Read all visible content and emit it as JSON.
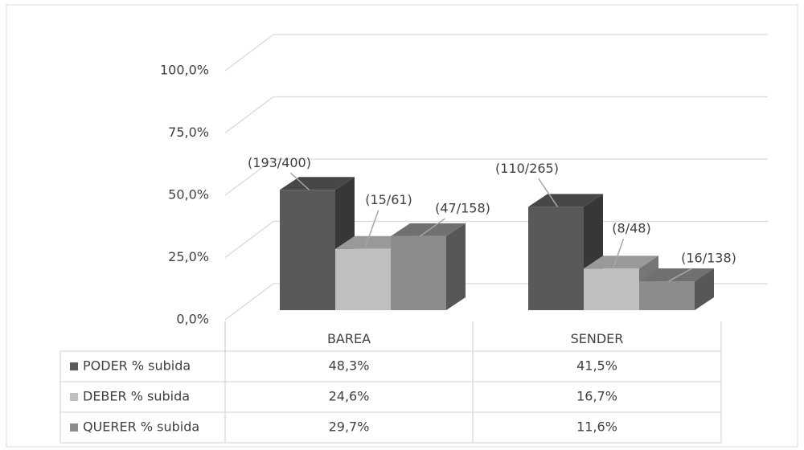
{
  "chart_data": {
    "type": "bar3d",
    "categories": [
      "BAREA",
      "SENDER"
    ],
    "series": [
      {
        "name": "PODER % subida",
        "color": "#595959",
        "values": [
          48.3,
          41.5
        ],
        "value_labels": [
          "48,3%",
          "41,5%"
        ],
        "annotations": [
          "(193/400)",
          "(110/265)"
        ]
      },
      {
        "name": "DEBER % subida",
        "color": "#bfbfbf",
        "values": [
          24.6,
          16.7
        ],
        "value_labels": [
          "24,6%",
          "16,7%"
        ],
        "annotations": [
          "(15/61)",
          "(8/48)"
        ]
      },
      {
        "name": "QUERER % subida",
        "color": "#8c8c8c",
        "values": [
          29.7,
          11.6
        ],
        "value_labels": [
          "29,7%",
          "11,6%"
        ],
        "annotations": [
          "(47/158)",
          "(16/138)"
        ]
      }
    ],
    "ylim": [
      0,
      100
    ],
    "yticks": [
      {
        "value": 0,
        "label": "0,0%"
      },
      {
        "value": 25,
        "label": "25,0%"
      },
      {
        "value": 50,
        "label": "50,0%"
      },
      {
        "value": 75,
        "label": "75,0%"
      },
      {
        "value": 100,
        "label": "100,0%"
      }
    ],
    "grid": true,
    "data_table": true
  }
}
